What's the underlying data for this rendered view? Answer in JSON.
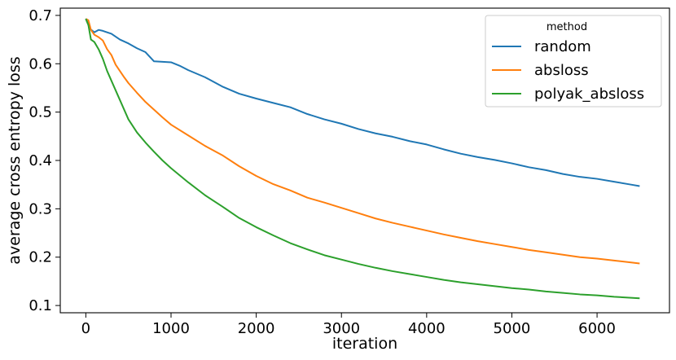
{
  "chart_data": {
    "type": "line",
    "title": "",
    "xlabel": "iteration",
    "ylabel": "average cross entropy loss",
    "xlim": [
      -300,
      6850
    ],
    "ylim": [
      0.085,
      0.715
    ],
    "x_ticks": [
      0,
      1000,
      2000,
      3000,
      4000,
      5000,
      6000
    ],
    "y_ticks": [
      0.1,
      0.2,
      0.3,
      0.4,
      0.5,
      0.6,
      0.7
    ],
    "x_tick_labels": [
      "0",
      "1000",
      "2000",
      "3000",
      "4000",
      "5000",
      "6000"
    ],
    "y_tick_labels": [
      "0.1",
      "0.2",
      "0.3",
      "0.4",
      "0.5",
      "0.6",
      "0.7"
    ],
    "grid": false,
    "legend": {
      "title": "method",
      "position": "top-right"
    },
    "series": [
      {
        "name": "random",
        "color": "#1f77b4",
        "points": [
          [
            0,
            0.693
          ],
          [
            50,
            0.672
          ],
          [
            100,
            0.665
          ],
          [
            150,
            0.67
          ],
          [
            200,
            0.668
          ],
          [
            300,
            0.662
          ],
          [
            400,
            0.65
          ],
          [
            500,
            0.642
          ],
          [
            600,
            0.632
          ],
          [
            700,
            0.624
          ],
          [
            800,
            0.605
          ],
          [
            900,
            0.604
          ],
          [
            1000,
            0.603
          ],
          [
            1100,
            0.596
          ],
          [
            1200,
            0.587
          ],
          [
            1400,
            0.572
          ],
          [
            1600,
            0.553
          ],
          [
            1800,
            0.538
          ],
          [
            2000,
            0.528
          ],
          [
            2200,
            0.519
          ],
          [
            2400,
            0.51
          ],
          [
            2600,
            0.496
          ],
          [
            2800,
            0.485
          ],
          [
            3000,
            0.476
          ],
          [
            3200,
            0.465
          ],
          [
            3400,
            0.456
          ],
          [
            3600,
            0.449
          ],
          [
            3800,
            0.44
          ],
          [
            4000,
            0.433
          ],
          [
            4200,
            0.423
          ],
          [
            4400,
            0.414
          ],
          [
            4600,
            0.407
          ],
          [
            4800,
            0.401
          ],
          [
            5000,
            0.394
          ],
          [
            5200,
            0.386
          ],
          [
            5400,
            0.38
          ],
          [
            5600,
            0.372
          ],
          [
            5800,
            0.366
          ],
          [
            6000,
            0.362
          ],
          [
            6200,
            0.356
          ],
          [
            6400,
            0.35
          ],
          [
            6500,
            0.347
          ]
        ]
      },
      {
        "name": "absloss",
        "color": "#ff7f0e",
        "points": [
          [
            0,
            0.693
          ],
          [
            30,
            0.69
          ],
          [
            60,
            0.67
          ],
          [
            100,
            0.66
          ],
          [
            150,
            0.655
          ],
          [
            200,
            0.648
          ],
          [
            250,
            0.63
          ],
          [
            300,
            0.618
          ],
          [
            350,
            0.598
          ],
          [
            400,
            0.585
          ],
          [
            450,
            0.572
          ],
          [
            500,
            0.56
          ],
          [
            600,
            0.54
          ],
          [
            700,
            0.521
          ],
          [
            800,
            0.505
          ],
          [
            900,
            0.489
          ],
          [
            1000,
            0.474
          ],
          [
            1200,
            0.452
          ],
          [
            1400,
            0.43
          ],
          [
            1600,
            0.411
          ],
          [
            1800,
            0.388
          ],
          [
            2000,
            0.368
          ],
          [
            2200,
            0.351
          ],
          [
            2400,
            0.338
          ],
          [
            2600,
            0.323
          ],
          [
            2800,
            0.313
          ],
          [
            3000,
            0.302
          ],
          [
            3200,
            0.291
          ],
          [
            3400,
            0.28
          ],
          [
            3600,
            0.271
          ],
          [
            3800,
            0.263
          ],
          [
            4000,
            0.255
          ],
          [
            4200,
            0.247
          ],
          [
            4400,
            0.24
          ],
          [
            4600,
            0.233
          ],
          [
            4800,
            0.227
          ],
          [
            5000,
            0.221
          ],
          [
            5200,
            0.215
          ],
          [
            5400,
            0.21
          ],
          [
            5600,
            0.205
          ],
          [
            5800,
            0.2
          ],
          [
            6000,
            0.197
          ],
          [
            6200,
            0.193
          ],
          [
            6400,
            0.189
          ],
          [
            6500,
            0.187
          ]
        ]
      },
      {
        "name": "polyak_absloss",
        "color": "#2ca02c",
        "points": [
          [
            0,
            0.693
          ],
          [
            30,
            0.68
          ],
          [
            60,
            0.65
          ],
          [
            100,
            0.645
          ],
          [
            150,
            0.63
          ],
          [
            200,
            0.61
          ],
          [
            250,
            0.585
          ],
          [
            300,
            0.565
          ],
          [
            350,
            0.545
          ],
          [
            400,
            0.525
          ],
          [
            450,
            0.505
          ],
          [
            500,
            0.485
          ],
          [
            600,
            0.458
          ],
          [
            700,
            0.437
          ],
          [
            800,
            0.418
          ],
          [
            900,
            0.4
          ],
          [
            1000,
            0.384
          ],
          [
            1200,
            0.355
          ],
          [
            1400,
            0.328
          ],
          [
            1600,
            0.305
          ],
          [
            1800,
            0.281
          ],
          [
            2000,
            0.262
          ],
          [
            2200,
            0.245
          ],
          [
            2400,
            0.229
          ],
          [
            2600,
            0.216
          ],
          [
            2800,
            0.204
          ],
          [
            3000,
            0.195
          ],
          [
            3200,
            0.186
          ],
          [
            3400,
            0.178
          ],
          [
            3600,
            0.171
          ],
          [
            3800,
            0.165
          ],
          [
            4000,
            0.159
          ],
          [
            4200,
            0.153
          ],
          [
            4400,
            0.148
          ],
          [
            4600,
            0.144
          ],
          [
            4800,
            0.14
          ],
          [
            5000,
            0.136
          ],
          [
            5200,
            0.133
          ],
          [
            5400,
            0.129
          ],
          [
            5600,
            0.126
          ],
          [
            5800,
            0.123
          ],
          [
            6000,
            0.121
          ],
          [
            6200,
            0.118
          ],
          [
            6400,
            0.116
          ],
          [
            6500,
            0.115
          ]
        ]
      }
    ]
  }
}
